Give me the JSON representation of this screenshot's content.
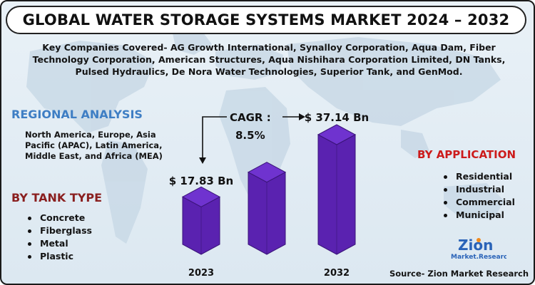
{
  "header": {
    "title": "GLOBAL WATER STORAGE SYSTEMS MARKET 2024 – 2032",
    "companies": "Key Companies Covered- AG Growth International, Synalloy Corporation, Aqua Dam, Fiber Technology Corporation, American Structures, Aqua Nishihara Corporation Limited, DN Tanks, Pulsed Hydraulics, De Nora Water Technologies, Superior Tank, and GenMod."
  },
  "regional": {
    "heading": "REGIONAL ANALYSIS",
    "text": "North America, Europe, Asia Pacific (APAC), Latin America, Middle East, and Africa (MEA)"
  },
  "tank_type": {
    "heading": "BY TANK TYPE",
    "items": [
      "Concrete",
      "Fiberglass",
      "Metal",
      "Plastic"
    ]
  },
  "application": {
    "heading": "BY APPLICATION",
    "items": [
      "Residential",
      "Industrial",
      "Commercial",
      "Municipal"
    ]
  },
  "chart_data": {
    "type": "bar",
    "categories": [
      "2023",
      "",
      "2032"
    ],
    "values": [
      17.83,
      25.5,
      37.14
    ],
    "labels": [
      "$ 17.83 Bn",
      "",
      "$ 37.14 Bn"
    ],
    "cagr_label": "CAGR :",
    "cagr_value": "8.5%",
    "bar_color": "#5a22b0",
    "bar_top_color": "#6f33cf"
  },
  "logo": {
    "line1": "Zion",
    "line2": "Market.Research"
  },
  "source": "Source- Zion Market Research"
}
